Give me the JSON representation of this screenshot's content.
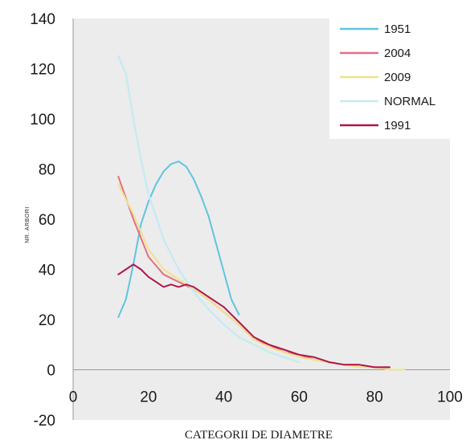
{
  "chart_data": {
    "type": "line",
    "title": "",
    "xlabel": "CATEGORII DE DIAMETRE",
    "ylabel": "NR. ARBORI",
    "xlim": [
      0,
      100
    ],
    "ylim": [
      -20,
      140
    ],
    "xticks": [
      "0",
      "20",
      "40",
      "60",
      "80",
      "100"
    ],
    "yticks": [
      "-20",
      "0",
      "20",
      "40",
      "60",
      "80",
      "100",
      "120",
      "140"
    ],
    "legend_position": "top-right",
    "grid": false,
    "series": [
      {
        "name": "1951",
        "color": "#5fc4de",
        "x": [
          12,
          14,
          16,
          18,
          20,
          22,
          24,
          26,
          28,
          30,
          32,
          34,
          36,
          38,
          40,
          42,
          44
        ],
        "y": [
          21,
          28,
          42,
          58,
          67,
          74,
          79,
          82,
          83,
          81,
          76,
          69,
          61,
          50,
          39,
          28,
          22
        ]
      },
      {
        "name": "2004",
        "color": "#e36f84",
        "x": [
          12,
          16,
          20,
          24,
          28,
          32,
          36,
          40,
          44,
          48,
          52,
          56,
          60,
          64,
          68,
          72,
          76,
          80,
          84
        ],
        "y": [
          77,
          60,
          45,
          38,
          35,
          32,
          28,
          23,
          18,
          12,
          10,
          7,
          6,
          4,
          3,
          2,
          2,
          1,
          1
        ]
      },
      {
        "name": "2009",
        "color": "#f0e28a",
        "x": [
          12,
          16,
          20,
          24,
          28,
          32,
          36,
          40,
          44,
          48,
          52,
          56,
          60,
          64,
          68,
          72,
          76,
          80,
          84,
          88
        ],
        "y": [
          74,
          62,
          48,
          40,
          36,
          32,
          28,
          23,
          18,
          12,
          9,
          7,
          5,
          4,
          3,
          2,
          1,
          1,
          0,
          0
        ]
      },
      {
        "name": "NORMAL",
        "color": "#c8eaf2",
        "x": [
          12,
          14,
          16,
          18,
          20,
          24,
          28,
          32,
          36,
          40,
          44,
          48,
          52,
          56,
          60
        ],
        "y": [
          125,
          118,
          100,
          84,
          70,
          52,
          40,
          31,
          24,
          18,
          13,
          10,
          7,
          5,
          3
        ]
      },
      {
        "name": "1991",
        "color": "#b0154a",
        "x": [
          12,
          14,
          16,
          18,
          20,
          22,
          24,
          26,
          28,
          30,
          32,
          36,
          40,
          44,
          48,
          52,
          56,
          60,
          64,
          68,
          72,
          76,
          80,
          84
        ],
        "y": [
          38,
          40,
          42,
          40,
          37,
          35,
          33,
          34,
          33,
          34,
          33,
          29,
          25,
          19,
          13,
          10,
          8,
          6,
          5,
          3,
          2,
          2,
          1,
          1
        ]
      }
    ]
  }
}
